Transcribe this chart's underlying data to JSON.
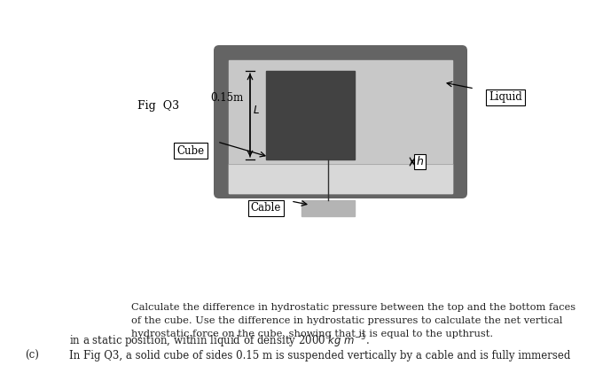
{
  "bg_color": "#ffffff",
  "fig_width": 6.71,
  "fig_height": 4.21,
  "dpi": 100,
  "text_c_label": "(c)",
  "text_line1": "In Fig Q3, a solid cube of sides 0.15 m is suspended vertically by a cable and is fully immersed",
  "text_line2": "in a static position, within liquid of density 2000 $kg\\ m^{-3}$.",
  "text_q": "Calculate the difference in hydrostatic pressure between the top and the bottom faces\nof the cube. Use the difference in hydrostatic pressures to calculate the net vertical\nhydrostatic force on the cube, showing that it is equal to the upthrust.",
  "label_cable": "Cable",
  "label_cube": "Cube",
  "label_fig": "Fig  Q3",
  "label_liquid": "Liquid",
  "label_h": "$h$",
  "label_015": "0.15m",
  "label_L": "$L$",
  "container_color": "#646464",
  "liquid_color": "#c8c8c8",
  "cube_color": "#424242",
  "cable_rect_color": "#b4b4b4",
  "wall_color": "#646464"
}
